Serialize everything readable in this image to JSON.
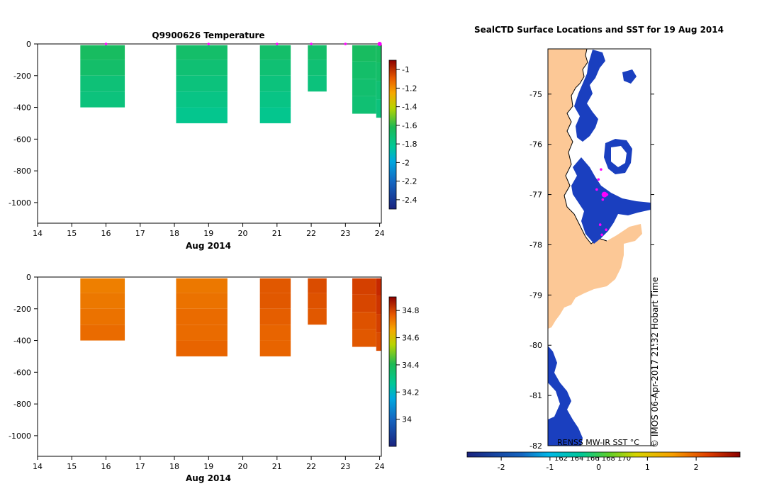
{
  "colors": {
    "temp_ramp": [
      "#1a237e",
      "#1565c0",
      "#0288d1",
      "#00b8d4",
      "#00c896",
      "#1db954",
      "#6ccf2a",
      "#c8d400",
      "#f7a800",
      "#e86400",
      "#c62800",
      "#8b0000"
    ],
    "land": "#fcc896",
    "ice": "#ffffff",
    "sst_cold": "#1a3fbf",
    "track": "#ff00ff"
  },
  "figure": {
    "temp_title": "Q9900626  Temperature",
    "map_title": "SealCTD Surface Locations and SST for 19 Aug 2014",
    "x_label": "Aug 2014",
    "x_ticks": [
      "14",
      "15",
      "16",
      "17",
      "18",
      "19",
      "20",
      "21",
      "22",
      "23",
      "24"
    ],
    "y_ticks": [
      "0",
      "-200",
      "-400",
      "-600",
      "-800",
      "-1000"
    ],
    "temp_colorbar_ticks": [
      "-1",
      "-1.2",
      "-1.4",
      "-1.6",
      "-1.8",
      "-2",
      "-2.2",
      "-2.4"
    ],
    "sal_colorbar_ticks": [
      "34.8",
      "34.6",
      "34.4",
      "34.2",
      "34"
    ],
    "map_lat_ticks": [
      "-75",
      "-76",
      "-77",
      "-78",
      "-79",
      "-80",
      "-81",
      "-82"
    ],
    "sst_ticks": [
      "-2",
      "-1",
      "0",
      "1",
      "2"
    ],
    "map_lon_labels": "162  164  166  168  170",
    "sst_label": "RENSS MW-IR SST °C",
    "credit": "© IMOS 06-Apr-2017 21:32 Hobart Time"
  },
  "chart_data": [
    {
      "type": "heatmap",
      "title": "Q9900626  Temperature",
      "xlabel": "Aug 2014",
      "ylabel": "",
      "xlim": [
        14,
        24.05
      ],
      "ylim": [
        -1130,
        0
      ],
      "colorbar_range": [
        -2.5,
        -0.9
      ],
      "profiles": [
        {
          "t_start": 15.25,
          "t_end": 16.55,
          "max_depth": 400,
          "values": [
            -1.8,
            -1.82,
            -1.85,
            -1.86
          ]
        },
        {
          "t_start": 18.05,
          "t_end": 19.55,
          "max_depth": 500,
          "values": [
            -1.82,
            -1.84,
            -1.86,
            -1.88,
            -1.9
          ]
        },
        {
          "t_start": 20.5,
          "t_end": 21.4,
          "max_depth": 500,
          "values": [
            -1.82,
            -1.84,
            -1.86,
            -1.88,
            -1.9
          ]
        },
        {
          "t_start": 21.9,
          "t_end": 22.45,
          "max_depth": 300,
          "values": [
            -1.82,
            -1.84,
            -1.86
          ]
        },
        {
          "t_start": 23.2,
          "t_end": 23.9,
          "max_depth": 440,
          "values": [
            -1.8,
            -1.82,
            -1.83,
            -1.84
          ]
        },
        {
          "t_start": 23.9,
          "t_end": 24.05,
          "max_depth": 465,
          "values": [
            -1.8,
            -1.82,
            -1.84,
            -1.86
          ]
        }
      ],
      "surface_markers": [
        16.0,
        19.0,
        21.0,
        22.0,
        23.0,
        24.0
      ]
    },
    {
      "type": "heatmap",
      "title": "",
      "xlabel": "Aug 2014",
      "ylabel": "",
      "xlim": [
        14,
        24.05
      ],
      "ylim": [
        -1130,
        0
      ],
      "colorbar_range": [
        33.8,
        34.9
      ],
      "profiles": [
        {
          "t_start": 15.25,
          "t_end": 16.55,
          "max_depth": 400,
          "values": [
            34.66,
            34.67,
            34.68,
            34.69
          ]
        },
        {
          "t_start": 18.05,
          "t_end": 19.55,
          "max_depth": 500,
          "values": [
            34.67,
            34.68,
            34.69,
            34.69,
            34.7
          ]
        },
        {
          "t_start": 20.5,
          "t_end": 21.4,
          "max_depth": 500,
          "values": [
            34.72,
            34.72,
            34.71,
            34.7,
            34.7
          ]
        },
        {
          "t_start": 21.9,
          "t_end": 22.45,
          "max_depth": 300,
          "values": [
            34.74,
            34.73,
            34.72
          ]
        },
        {
          "t_start": 23.2,
          "t_end": 23.9,
          "max_depth": 440,
          "values": [
            34.76,
            34.75,
            34.73,
            34.72
          ]
        },
        {
          "t_start": 23.9,
          "t_end": 24.05,
          "max_depth": 465,
          "values": [
            34.8,
            34.78,
            34.76,
            34.74
          ]
        }
      ]
    },
    {
      "type": "heatmap",
      "title": "SealCTD Surface Locations and SST for 19 Aug 2014",
      "xlabel": "162  164  166  168  170",
      "ylabel": "",
      "ylim": [
        -82,
        -74.1
      ],
      "sst_range": [
        -2.7,
        2.9
      ],
      "track_points": [
        {
          "lon": 166.6,
          "lat": -77.0
        },
        {
          "lon": 166.4,
          "lat": -77.1
        },
        {
          "lon": 166.9,
          "lat": -77.0
        },
        {
          "lon": 166.1,
          "lat": -77.6
        },
        {
          "lon": 166.3,
          "lat": -77.8
        },
        {
          "lon": 166.8,
          "lat": -77.7
        },
        {
          "lon": 165.9,
          "lat": -76.7
        },
        {
          "lon": 165.7,
          "lat": -76.9
        },
        {
          "lon": 166.2,
          "lat": -76.5
        }
      ]
    }
  ]
}
